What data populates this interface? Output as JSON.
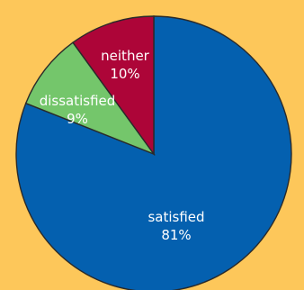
{
  "chart_data": {
    "type": "pie",
    "background": "#fdc75a",
    "slices": [
      {
        "label": "satisfied",
        "value": 81,
        "value_label": "81%",
        "color": "#0460af"
      },
      {
        "label": "dissatisfied",
        "value": 9,
        "value_label": "9%",
        "color": "#74c66b"
      },
      {
        "label": "neither",
        "value": 10,
        "value_label": "10%",
        "color": "#ad0538"
      }
    ],
    "start": "top",
    "direction": "clockwise",
    "legend": "none"
  }
}
